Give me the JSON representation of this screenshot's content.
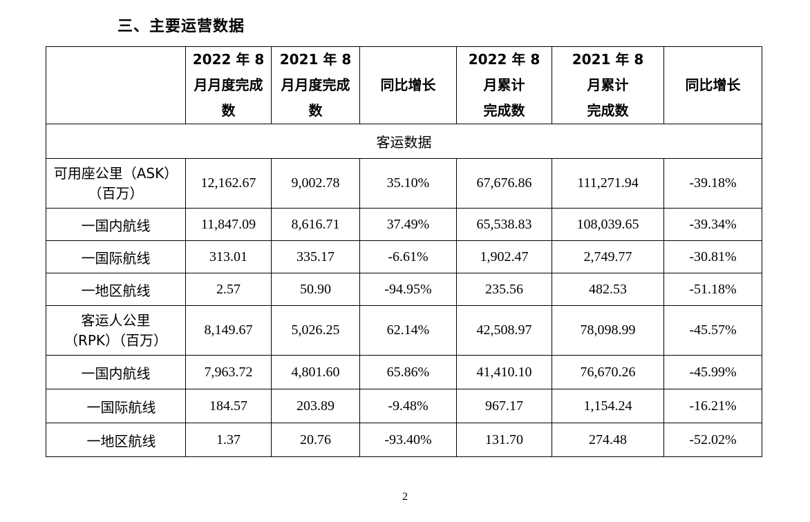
{
  "section_title": "三、主要运营数据",
  "table": {
    "headers": {
      "blank": "",
      "col1": "2022 年 8\n月月度完成\n数",
      "col2": "2021 年 8\n月月度完成\n数",
      "col3": "同比增长",
      "col4": "2022 年 8\n月累计\n完成数",
      "col5": "2021 年 8\n月累计\n完成数",
      "col6": "同比增长"
    },
    "section_label": "客运数据",
    "ask": {
      "label_line1": "可用座公里（ASK）",
      "label_line2": "（百万）",
      "values": [
        "12,162.67",
        "9,002.78",
        "35.10%",
        "67,676.86",
        "111,271.94",
        "-39.18%"
      ]
    },
    "ask_domestic": {
      "label": "一国内航线",
      "values": [
        "11,847.09",
        "8,616.71",
        "37.49%",
        "65,538.83",
        "108,039.65",
        "-39.34%"
      ]
    },
    "ask_international": {
      "label": "一国际航线",
      "values": [
        "313.01",
        "335.17",
        "-6.61%",
        "1,902.47",
        "2,749.77",
        "-30.81%"
      ]
    },
    "ask_regional": {
      "label": "一地区航线",
      "values": [
        "2.57",
        "50.90",
        "-94.95%",
        "235.56",
        "482.53",
        "-51.18%"
      ]
    },
    "rpk": {
      "label_line1": "客运人公里",
      "label_line2": "（RPK）（百万）",
      "values": [
        "8,149.67",
        "5,026.25",
        "62.14%",
        "42,508.97",
        "78,098.99",
        "-45.57%"
      ]
    },
    "rpk_domestic": {
      "label": "一国内航线",
      "values": [
        "7,963.72",
        "4,801.60",
        "65.86%",
        "41,410.10",
        "76,670.26",
        "-45.99%"
      ]
    },
    "rpk_international": {
      "label": "一国际航线",
      "values": [
        "184.57",
        "203.89",
        "-9.48%",
        "967.17",
        "1,154.24",
        "-16.21%"
      ]
    },
    "rpk_regional": {
      "label": "一地区航线",
      "values": [
        "1.37",
        "20.76",
        "-93.40%",
        "131.70",
        "274.48",
        "-52.02%"
      ]
    }
  },
  "page_number": "2"
}
